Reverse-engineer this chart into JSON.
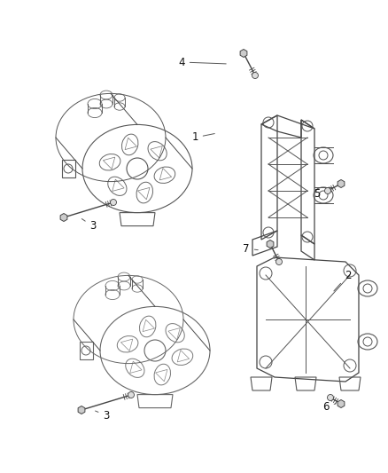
{
  "background_color": "#ffffff",
  "line_color": "#4a4a4a",
  "label_color": "#111111",
  "fig_width": 4.38,
  "fig_height": 5.33,
  "dpi": 100
}
